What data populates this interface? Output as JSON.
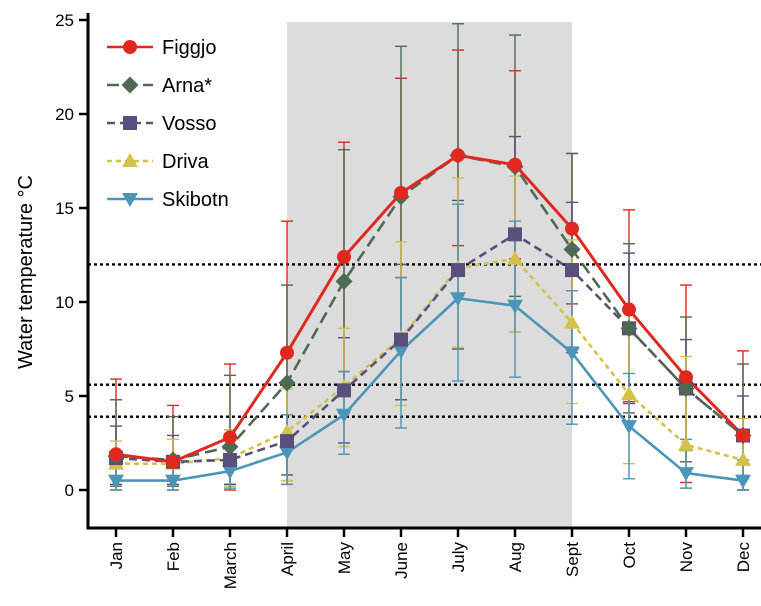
{
  "chart_data": {
    "type": "line",
    "ylabel": "Water temperature °C",
    "xlabel": "",
    "ylim": [
      0,
      25
    ],
    "yticks": [
      "0",
      "5",
      "10",
      "15",
      "20",
      "25"
    ],
    "categories": [
      "Jan",
      "Feb",
      "March",
      "April",
      "May",
      "June",
      "July",
      "Aug",
      "Sept",
      "Oct",
      "Nov",
      "Dec"
    ],
    "shaded_region": {
      "from": "April",
      "to": "Sept",
      "color": "#dcdcdc"
    },
    "reference_lines": [
      12,
      5.6,
      3.9
    ],
    "legend_position": "top-left",
    "grid": false,
    "series": [
      {
        "name": "Figgjo",
        "color": "#e0281e",
        "dash": "solid",
        "marker": "circle",
        "values": [
          1.9,
          1.5,
          2.8,
          7.3,
          12.4,
          15.8,
          17.8,
          17.3,
          13.9,
          9.6,
          6.0,
          2.9
        ],
        "low": [
          0.0,
          0.0,
          0.0,
          0.3,
          6.3,
          11.3,
          13.0,
          12.3,
          9.9,
          4.7,
          0.4,
          0.0
        ],
        "high": [
          5.9,
          4.5,
          6.7,
          14.3,
          18.5,
          21.9,
          23.4,
          22.3,
          17.9,
          14.9,
          10.9,
          7.4
        ]
      },
      {
        "name": "Arna*",
        "color": "#4e6a53",
        "dash": "long",
        "marker": "diamond",
        "values": [
          1.8,
          1.6,
          2.3,
          5.7,
          11.1,
          15.6,
          17.8,
          17.2,
          12.8,
          8.6,
          5.4,
          2.9
        ],
        "low": [
          0.2,
          0.2,
          0.3,
          0.5,
          4.1,
          7.6,
          11.5,
          10.3,
          7.6,
          4.1,
          1.5,
          0.0
        ],
        "high": [
          4.8,
          3.9,
          6.1,
          10.9,
          18.1,
          23.6,
          24.8,
          24.2,
          17.9,
          13.1,
          9.2,
          6.7
        ]
      },
      {
        "name": "Vosso",
        "color": "#5a4f7c",
        "dash": "medium",
        "marker": "square",
        "values": [
          1.7,
          1.5,
          1.6,
          2.6,
          5.3,
          8.0,
          11.7,
          13.6,
          11.7,
          8.6,
          5.4,
          2.9
        ],
        "low": [
          0.3,
          0.3,
          0.3,
          0.8,
          2.5,
          4.8,
          7.5,
          8.4,
          7.3,
          4.6,
          2.1,
          0.6
        ],
        "high": [
          3.4,
          2.9,
          3.2,
          5.4,
          8.1,
          12.0,
          15.4,
          18.8,
          15.3,
          12.6,
          8.0,
          5.0
        ]
      },
      {
        "name": "Driva",
        "color": "#d2c24a",
        "dash": "short",
        "marker": "triangle-up",
        "values": [
          1.4,
          1.4,
          1.7,
          3.1,
          5.5,
          8.1,
          11.8,
          12.3,
          8.9,
          5.1,
          2.4,
          1.6
        ],
        "low": [
          0.0,
          0.0,
          0.2,
          0.5,
          2.3,
          4.5,
          7.6,
          8.4,
          4.6,
          1.4,
          0.1,
          0.0
        ],
        "high": [
          2.6,
          2.7,
          3.2,
          5.4,
          8.6,
          13.2,
          16.6,
          16.7,
          13.3,
          9.6,
          7.1,
          3.8
        ]
      },
      {
        "name": "Skibotn",
        "color": "#4a95b8",
        "dash": "solid",
        "marker": "triangle-down",
        "values": [
          0.5,
          0.5,
          1.0,
          2.0,
          4.0,
          7.4,
          10.2,
          9.8,
          7.3,
          3.4,
          0.9,
          0.5
        ],
        "low": [
          0.0,
          0.0,
          0.1,
          0.3,
          1.9,
          3.3,
          5.8,
          6.0,
          3.5,
          0.6,
          0.1,
          0.0
        ],
        "high": [
          1.3,
          1.3,
          2.3,
          4.0,
          6.3,
          11.3,
          15.2,
          14.3,
          10.6,
          6.2,
          2.7,
          1.6
        ]
      }
    ]
  }
}
